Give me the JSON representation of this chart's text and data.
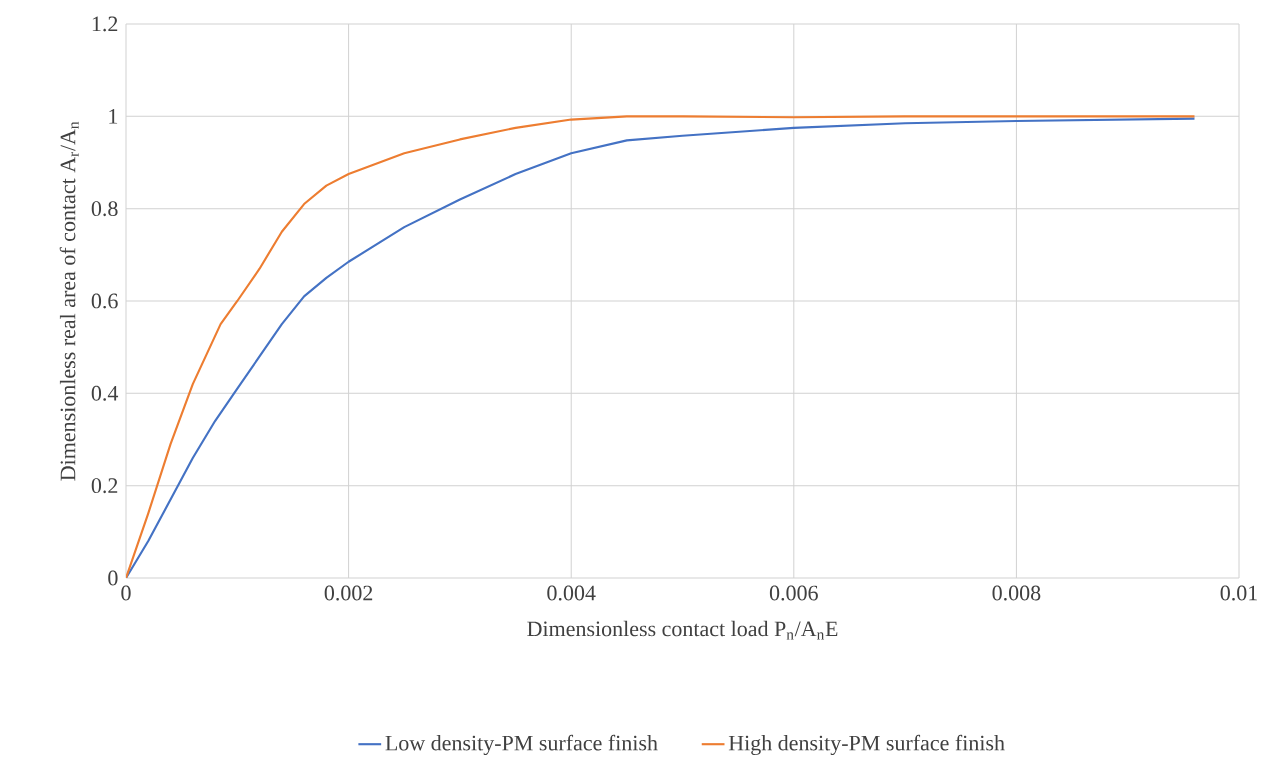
{
  "chart_data": {
    "type": "line",
    "xlabel": "Dimensionless contact load P$_{n}$/A$_{n}$E",
    "ylabel": "Dimensionless real area of contact A$_{r}$/A$_{n}$",
    "xlim": [
      0,
      0.01
    ],
    "ylim": [
      0,
      1.2
    ],
    "xticks": [
      0,
      0.002,
      0.004,
      0.006,
      0.008,
      0.01
    ],
    "yticks": [
      0,
      0.2,
      0.4,
      0.6,
      0.8,
      1,
      1.2
    ],
    "grid": true,
    "legend": "bottom",
    "series": [
      {
        "name": "Low density-PM surface finish",
        "color": "#4472c4",
        "x": [
          0,
          0.0002,
          0.0004,
          0.0006,
          0.0008,
          0.001,
          0.0012,
          0.0014,
          0.0016,
          0.0018,
          0.002,
          0.0025,
          0.003,
          0.0035,
          0.004,
          0.0045,
          0.005,
          0.006,
          0.007,
          0.008,
          0.0096
        ],
        "values": [
          0,
          0.08,
          0.17,
          0.26,
          0.34,
          0.41,
          0.48,
          0.55,
          0.61,
          0.65,
          0.685,
          0.76,
          0.82,
          0.875,
          0.92,
          0.948,
          0.958,
          0.975,
          0.985,
          0.99,
          0.995
        ]
      },
      {
        "name": "High density-PM surface finish",
        "color": "#ed7d31",
        "x": [
          0,
          0.0002,
          0.0004,
          0.0006,
          0.00085,
          0.001,
          0.0012,
          0.0014,
          0.0016,
          0.0018,
          0.002,
          0.0025,
          0.003,
          0.0035,
          0.004,
          0.0045,
          0.005,
          0.006,
          0.007,
          0.008,
          0.0096
        ],
        "values": [
          0,
          0.14,
          0.29,
          0.42,
          0.55,
          0.6,
          0.67,
          0.75,
          0.81,
          0.85,
          0.875,
          0.92,
          0.95,
          0.975,
          0.993,
          1.0,
          1.0,
          0.998,
          1.0,
          1.0,
          1.0
        ]
      }
    ]
  }
}
